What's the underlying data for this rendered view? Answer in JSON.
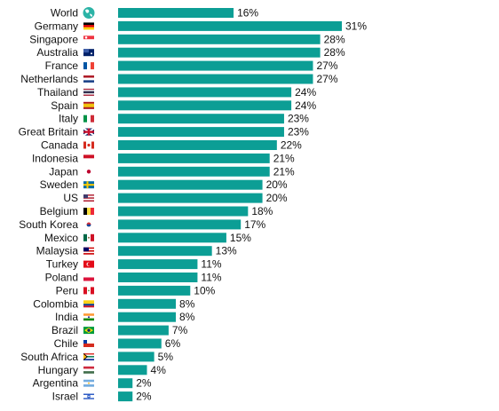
{
  "chart_data": {
    "type": "bar",
    "orientation": "horizontal",
    "bar_color": "#0c9e95",
    "value_suffix": "%",
    "categories": [
      "World",
      "Germany",
      "Singapore",
      "Australia",
      "France",
      "Netherlands",
      "Thailand",
      "Spain",
      "Italy",
      "Great Britain",
      "Canada",
      "Indonesia",
      "Japan",
      "Sweden",
      "US",
      "Belgium",
      "South Korea",
      "Mexico",
      "Malaysia",
      "Turkey",
      "Poland",
      "Peru",
      "Colombia",
      "India",
      "Brazil",
      "Chile",
      "South Africa",
      "Hungary",
      "Argentina",
      "Israel"
    ],
    "values": [
      16,
      31,
      28,
      28,
      27,
      27,
      24,
      24,
      23,
      23,
      22,
      21,
      21,
      20,
      20,
      18,
      17,
      15,
      13,
      11,
      11,
      10,
      8,
      8,
      7,
      6,
      5,
      4,
      2,
      2
    ],
    "value_labels": [
      "16%",
      "31%",
      "28%",
      "28%",
      "27%",
      "27%",
      "24%",
      "24%",
      "23%",
      "23%",
      "22%",
      "21%",
      "21%",
      "20%",
      "20%",
      "18%",
      "17%",
      "15%",
      "13%",
      "11%",
      "11%",
      "10%",
      "8%",
      "8%",
      "7%",
      "6%",
      "5%",
      "4%",
      "2%",
      "2%"
    ],
    "icons": [
      "globe-icon",
      "flag-germany-icon",
      "flag-singapore-icon",
      "flag-australia-icon",
      "flag-france-icon",
      "flag-netherlands-icon",
      "flag-thailand-icon",
      "flag-spain-icon",
      "flag-italy-icon",
      "flag-great-britain-icon",
      "flag-canada-icon",
      "flag-indonesia-icon",
      "flag-japan-icon",
      "flag-sweden-icon",
      "flag-us-icon",
      "flag-belgium-icon",
      "flag-south-korea-icon",
      "flag-mexico-icon",
      "flag-malaysia-icon",
      "flag-turkey-icon",
      "flag-poland-icon",
      "flag-peru-icon",
      "flag-colombia-icon",
      "flag-india-icon",
      "flag-brazil-icon",
      "flag-chile-icon",
      "flag-south-africa-icon",
      "flag-hungary-icon",
      "flag-argentina-icon",
      "flag-israel-icon"
    ],
    "xlim": [
      0,
      31
    ],
    "grid": false,
    "legend": "none"
  }
}
